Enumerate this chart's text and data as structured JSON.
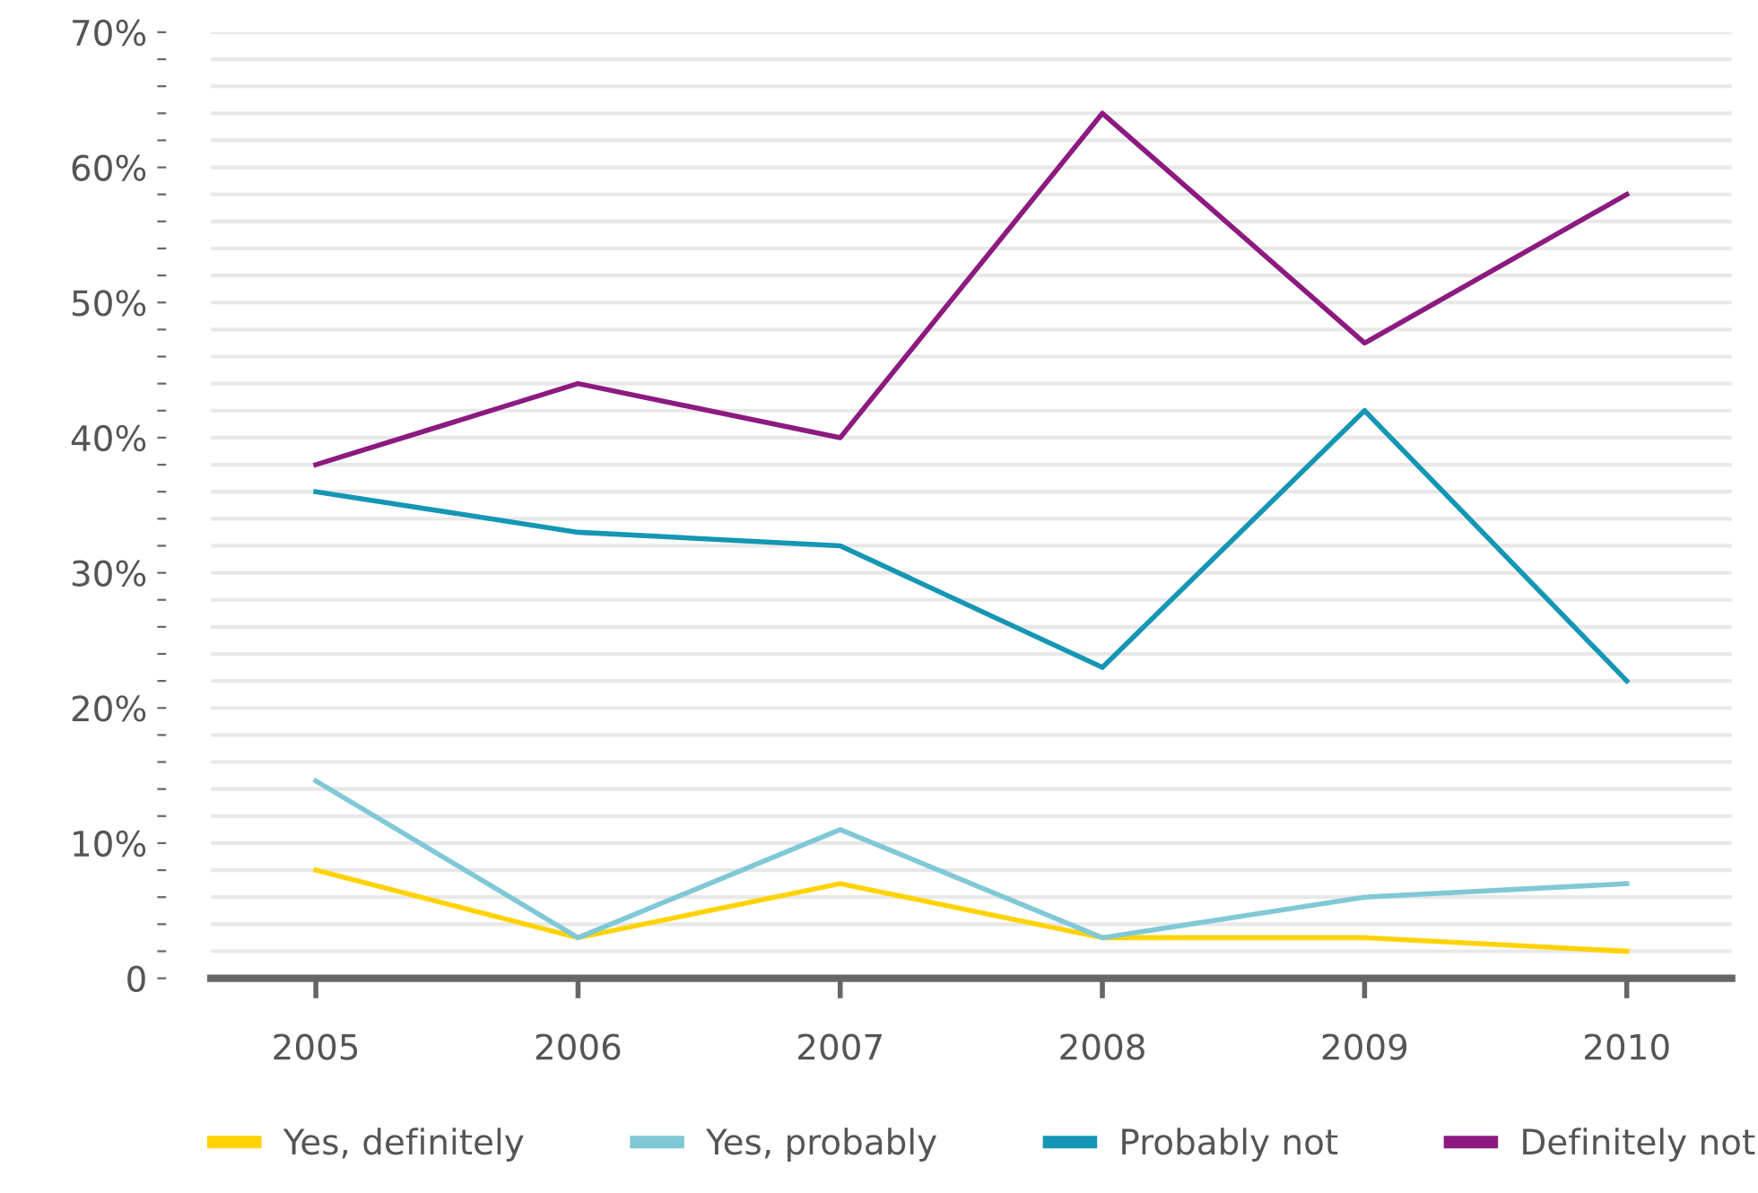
{
  "chart_data": {
    "type": "line",
    "categories": [
      "2005",
      "2006",
      "2007",
      "2008",
      "2009",
      "2010"
    ],
    "series": [
      {
        "name": "Yes, definitely",
        "color": "#ffd200",
        "values": [
          8,
          3,
          7,
          3,
          3,
          2
        ]
      },
      {
        "name": "Yes, probably",
        "color": "#80c8d6",
        "values": [
          14.6,
          3,
          11,
          3,
          6,
          7
        ]
      },
      {
        "name": "Probably not",
        "color": "#1496b4",
        "values": [
          36,
          33,
          32,
          23,
          42,
          22
        ]
      },
      {
        "name": "Definitely not",
        "color": "#8c1a80",
        "values": [
          38,
          44,
          40,
          64,
          47,
          58
        ]
      }
    ],
    "ylim": [
      0,
      70
    ],
    "yticks": [
      {
        "value": 0,
        "label": "0"
      },
      {
        "value": 2,
        "label": null
      },
      {
        "value": 4,
        "label": null
      },
      {
        "value": 6,
        "label": null
      },
      {
        "value": 8,
        "label": null
      },
      {
        "value": 10,
        "label": "10%"
      },
      {
        "value": 12,
        "label": null
      },
      {
        "value": 14,
        "label": null
      },
      {
        "value": 16,
        "label": null
      },
      {
        "value": 18,
        "label": null
      },
      {
        "value": 20,
        "label": "20%"
      },
      {
        "value": 22,
        "label": null
      },
      {
        "value": 24,
        "label": null
      },
      {
        "value": 26,
        "label": null
      },
      {
        "value": 28,
        "label": null
      },
      {
        "value": 30,
        "label": "30%"
      },
      {
        "value": 32,
        "label": null
      },
      {
        "value": 34,
        "label": null
      },
      {
        "value": 36,
        "label": null
      },
      {
        "value": 38,
        "label": null
      },
      {
        "value": 40,
        "label": "40%"
      },
      {
        "value": 42,
        "label": null
      },
      {
        "value": 44,
        "label": null
      },
      {
        "value": 46,
        "label": null
      },
      {
        "value": 48,
        "label": null
      },
      {
        "value": 50,
        "label": "50%"
      },
      {
        "value": 52,
        "label": null
      },
      {
        "value": 54,
        "label": null
      },
      {
        "value": 56,
        "label": null
      },
      {
        "value": 58,
        "label": null
      },
      {
        "value": 60,
        "label": "60%"
      },
      {
        "value": 62,
        "label": null
      },
      {
        "value": 64,
        "label": null
      },
      {
        "value": 66,
        "label": null
      },
      {
        "value": 68,
        "label": null
      },
      {
        "value": 70,
        "label": "70%"
      }
    ],
    "grid": "y",
    "legend": "bottom",
    "marker": "none",
    "line_style": "solid"
  }
}
